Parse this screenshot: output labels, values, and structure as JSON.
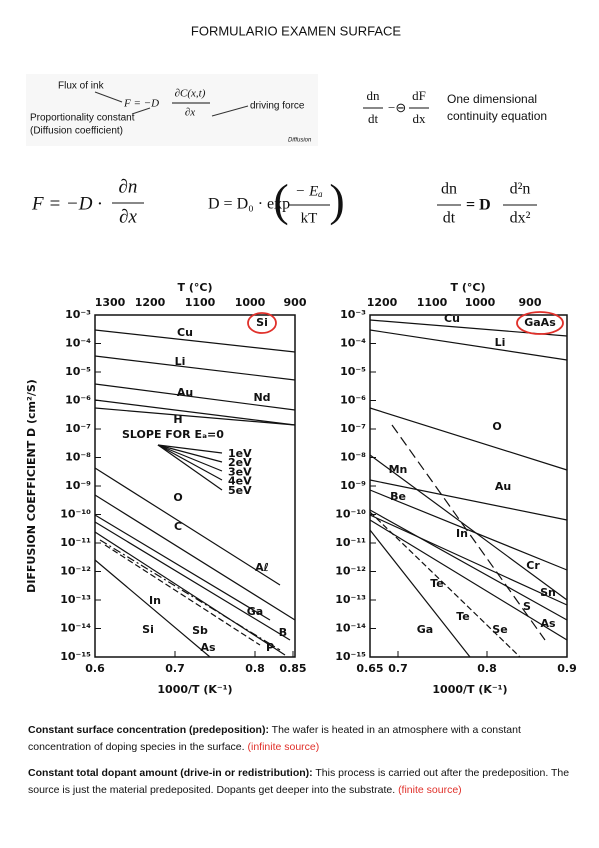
{
  "header": {
    "title": "FORMULARIO EXAMEN SURFACE"
  },
  "fick_image": {
    "flux_label": "Flux of ink",
    "lhs": "F = −D",
    "numerator": "∂C(x,t)",
    "denominator": "∂x",
    "constant_label": "Proportionality constant",
    "constant_note": "(Diffusion coefficient)",
    "force_label": "driving force",
    "source": "Diffusion"
  },
  "continuity": {
    "lhs_num": "dn",
    "lhs_den": "dt",
    "op": "−⊖",
    "rhs_num": "dF",
    "rhs_den": "dx",
    "caption_line1": "One dimensional",
    "caption_line2": "continuity equation"
  },
  "formulas": {
    "f1": {
      "lhs": "F = −D ·",
      "num": "∂n",
      "den": "∂x"
    },
    "f2": {
      "lhs": "D = D₀ · exp",
      "num": "− Eₐ",
      "den": "kT"
    },
    "f3": {
      "lhs_num": "dn",
      "lhs_den": "dt",
      "eq": "= D",
      "num": "d²n",
      "den": "dx²"
    }
  },
  "figure": {
    "y_label": "DIFFUSION COEFFICIENT D (cm²/S)",
    "y_ticks": [
      "10⁻³",
      "10⁻⁴",
      "10⁻⁵",
      "10⁻⁶",
      "10⁻⁷",
      "10⁻⁸",
      "10⁻⁹",
      "10⁻¹⁰",
      "10⁻¹¹",
      "10⁻¹²",
      "10⁻¹³",
      "10⁻¹⁴",
      "10⁻¹⁵"
    ],
    "left": {
      "t_title": "T (°C)",
      "t_ticks": [
        "1300",
        "1200",
        "1100",
        "1000",
        "900"
      ],
      "x_ticks": [
        "0.6",
        "0.7",
        "0.8",
        "0.85"
      ],
      "x_label": "1000/T (K⁻¹)",
      "material": "Si",
      "slope_title": "SLOPE FOR Eₐ=0",
      "slopes": [
        "1eV",
        "2eV",
        "3eV",
        "4eV",
        "5eV"
      ],
      "labels": [
        "Cu",
        "Li",
        "Au",
        "Nd",
        "H",
        "O",
        "C",
        "In",
        "Si",
        "Sb",
        "As",
        "Aℓ",
        "Ga",
        "B",
        "P"
      ]
    },
    "right": {
      "t_title": "T (°C)",
      "t_ticks": [
        "1200",
        "1100",
        "1000",
        "900"
      ],
      "x_ticks": [
        "0.65",
        "0.7",
        "0.8",
        "0.9"
      ],
      "x_label": "1000/T (K⁻¹)",
      "material": "GaAs",
      "labels": [
        "Cu",
        "Li",
        "O",
        "Mn",
        "Au",
        "Be",
        "In",
        "Cr",
        "Sn",
        "Te",
        "S",
        "Te",
        "As",
        "Ga",
        "Se"
      ]
    }
  },
  "notes": [
    {
      "bold": "Constant surface concentration (predeposition):",
      "text": " The wafer is heated in an atmosphere with a constant concentration of doping species in the surface.",
      "red": "(infinite source)"
    },
    {
      "bold": "Constant total dopant amount (drive-in or redistribution):",
      "text": " This process is carried out after the predeposition. The source is just the material predeposited. Dopants get deeper into the substrate.",
      "red": "(finite source)"
    }
  ]
}
